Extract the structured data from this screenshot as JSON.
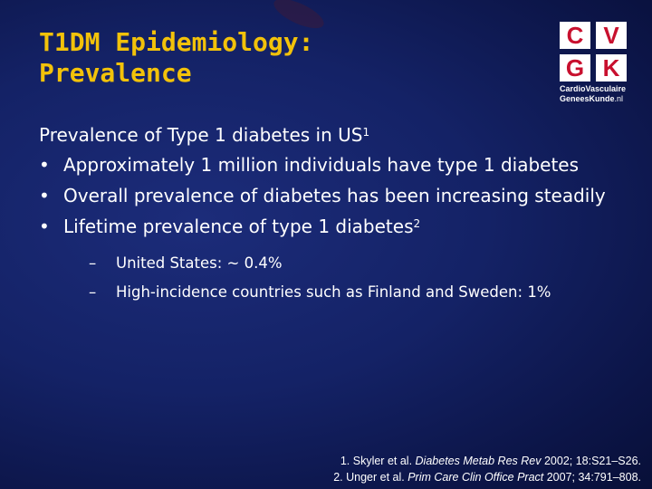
{
  "title": {
    "line1": "T1DM Epidemiology:",
    "line2": "Prevalence"
  },
  "logo": {
    "letters": [
      "C",
      "V",
      "G",
      "K"
    ],
    "line1": "CardioVasculaire",
    "line2_main": "GeneesKunde",
    "line2_suffix": ".nl"
  },
  "heading": {
    "text": "Prevalence of Type 1 diabetes in US",
    "sup": "1"
  },
  "bullet_glyph": "•",
  "dash_glyph": "–",
  "bullets": [
    {
      "text": "Approximately 1 million individuals have type 1 diabetes"
    },
    {
      "text": "Overall prevalence of diabetes has been increasing steadily"
    },
    {
      "text": "Lifetime prevalence of type 1 diabetes",
      "sup": "2"
    }
  ],
  "sub_bullets": [
    "United States: ~ 0.4%",
    "High-incidence countries such as Finland and Sweden: 1%"
  ],
  "references": [
    {
      "pre": "1. Skyler et al. ",
      "journal": "Diabetes Metab Res Rev",
      "post": " 2002; 18:S21–S26."
    },
    {
      "pre": "2. Unger et al. ",
      "journal": "Prim Care Clin Office Pract",
      "post": " 2007; 34:791–808."
    }
  ],
  "colors": {
    "title": "#f2c20a",
    "text": "#ffffff",
    "logo_red": "#c8102e",
    "background": "#142266"
  }
}
